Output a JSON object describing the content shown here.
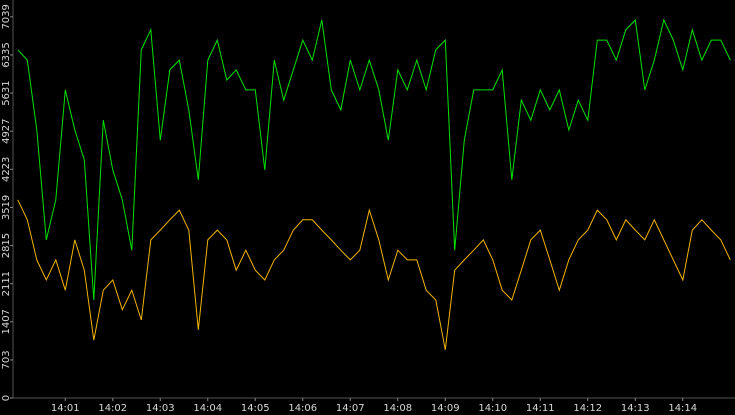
{
  "chart_data": {
    "type": "line",
    "x": [
      0,
      0.2,
      0.4,
      0.6,
      0.8,
      1.0,
      1.2,
      1.4,
      1.6,
      1.8,
      2.0,
      2.2,
      2.4,
      2.6,
      2.8,
      3.0,
      3.2,
      3.4,
      3.6,
      3.8,
      4.0,
      4.2,
      4.4,
      4.6,
      4.8,
      5.0,
      5.2,
      5.4,
      5.6,
      5.8,
      6.0,
      6.2,
      6.4,
      6.6,
      6.8,
      7.0,
      7.2,
      7.4,
      7.6,
      7.8,
      8.0,
      8.2,
      8.4,
      8.6,
      8.8,
      9.0,
      9.2,
      9.4,
      9.6,
      9.8,
      10.0,
      10.2,
      10.4,
      10.6,
      10.8,
      11.0,
      11.2,
      11.4,
      11.6,
      11.8,
      12.0,
      12.2,
      12.4,
      12.6,
      12.8,
      13.0,
      13.2,
      13.4,
      13.6,
      13.8,
      14.0,
      14.2,
      14.4,
      14.6,
      14.8,
      15.0
    ],
    "series": [
      {
        "color": "#00e000",
        "values": [
          6430,
          6240,
          4950,
          2920,
          3660,
          5690,
          4950,
          4400,
          1810,
          5130,
          4210,
          3660,
          2730,
          6430,
          6800,
          4760,
          6060,
          6240,
          5320,
          4030,
          6240,
          6610,
          5870,
          6060,
          5690,
          5690,
          4210,
          6240,
          5500,
          6060,
          6610,
          6240,
          6980,
          5690,
          5320,
          6240,
          5690,
          6240,
          5690,
          4760,
          6060,
          5690,
          6240,
          5690,
          6430,
          6610,
          2730,
          4760,
          5690,
          5690,
          5690,
          6060,
          4030,
          5500,
          5130,
          5690,
          5320,
          5690,
          4950,
          5500,
          5130,
          6610,
          6610,
          6240,
          6800,
          6980,
          5690,
          6240,
          6980,
          6610,
          6060,
          6800,
          6240,
          6610,
          6610,
          6240
        ]
      },
      {
        "color": "#f0b400",
        "values": [
          3660,
          3290,
          2550,
          2180,
          2550,
          1990,
          2920,
          2360,
          1070,
          1990,
          2180,
          1630,
          1990,
          1440,
          2920,
          3100,
          3290,
          3470,
          3100,
          1260,
          2920,
          3100,
          2920,
          2360,
          2730,
          2360,
          2180,
          2550,
          2730,
          3100,
          3290,
          3290,
          3100,
          2920,
          2730,
          2550,
          2730,
          3470,
          2920,
          2180,
          2730,
          2550,
          2550,
          1990,
          1810,
          890,
          2360,
          2550,
          2730,
          2920,
          2550,
          1990,
          1810,
          2360,
          2920,
          3100,
          2550,
          1990,
          2550,
          2920,
          3100,
          3470,
          3290,
          2920,
          3290,
          3100,
          2920,
          3290,
          2920,
          2550,
          2180,
          3100,
          3290,
          3100,
          2920,
          2550
        ]
      }
    ],
    "xlim": [
      -0.1,
      15.1
    ],
    "xticks": [
      {
        "value": 1,
        "label": "14:01"
      },
      {
        "value": 2,
        "label": "14:02"
      },
      {
        "value": 3,
        "label": "14:03"
      },
      {
        "value": 4,
        "label": "14:04"
      },
      {
        "value": 5,
        "label": "14:05"
      },
      {
        "value": 6,
        "label": "14:06"
      },
      {
        "value": 7,
        "label": "14:07"
      },
      {
        "value": 8,
        "label": "14:08"
      },
      {
        "value": 9,
        "label": "14:09"
      },
      {
        "value": 10,
        "label": "14:10"
      },
      {
        "value": 11,
        "label": "14:11"
      },
      {
        "value": 12,
        "label": "14:12"
      },
      {
        "value": 13,
        "label": "14:13"
      },
      {
        "value": 14,
        "label": "14:14"
      }
    ],
    "ylim": [
      0,
      7350
    ],
    "yticks": [
      0,
      703,
      1407,
      2111,
      2815,
      3519,
      4223,
      4927,
      5631,
      6335,
      7039
    ]
  }
}
